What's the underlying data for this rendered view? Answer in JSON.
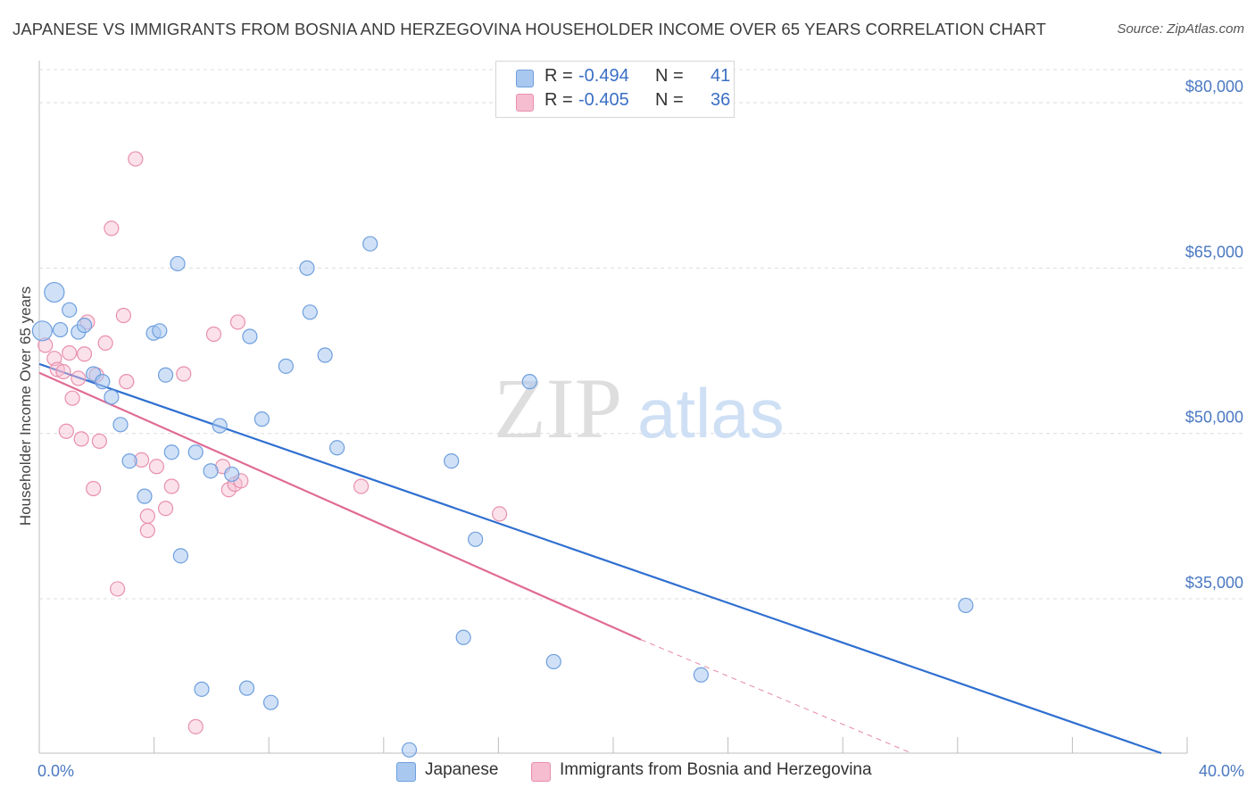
{
  "title": "JAPANESE VS IMMIGRANTS FROM BOSNIA AND HERZEGOVINA HOUSEHOLDER INCOME OVER 65 YEARS CORRELATION CHART",
  "source": "Source: ZipAtlas.com",
  "watermark": {
    "zip": "ZIP",
    "atlas": "atlas"
  },
  "legend": [
    {
      "r_label": "R = ",
      "r_value": "-0.494",
      "n_label": "N = ",
      "n_value": "41"
    },
    {
      "r_label": "R = ",
      "r_value": "-0.405",
      "n_label": "N = ",
      "n_value": "36"
    }
  ],
  "bottom_legend": [
    "Japanese",
    "Immigrants from Bosnia and Herzegovina"
  ],
  "colors": {
    "japanese_fill": "#a9c8f0",
    "japanese_stroke": "#6e9fde",
    "japanese_line": "#2f6fd0",
    "bosnia_fill": "#f6bcd0",
    "bosnia_stroke": "#e890ae",
    "bosnia_line": "#e06b95",
    "grid": "#dcdcdc",
    "tick_text": "#4a78c2"
  },
  "chart_data": {
    "type": "scatter",
    "title": "JAPANESE VS IMMIGRANTS FROM BOSNIA AND HERZEGOVINA HOUSEHOLDER INCOME OVER 65 YEARS CORRELATION CHART",
    "xlabel": "",
    "ylabel": "Householder Income Over 65 years",
    "xlim": [
      0,
      40
    ],
    "ylim": [
      21000,
      83000
    ],
    "x_tick_labels": [
      "0.0%",
      "40.0%"
    ],
    "y_ticks": [
      35000,
      50000,
      65000,
      80000
    ],
    "y_tick_labels": [
      "$35,000",
      "$50,000",
      "$65,000",
      "$80,000"
    ],
    "grid": true,
    "series": [
      {
        "name": "Japanese",
        "points": [
          [
            0.1,
            59300
          ],
          [
            0.5,
            62800
          ],
          [
            0.7,
            59400
          ],
          [
            1.0,
            61200
          ],
          [
            1.3,
            59200
          ],
          [
            1.5,
            59800
          ],
          [
            1.8,
            55400
          ],
          [
            2.1,
            54700
          ],
          [
            2.4,
            53300
          ],
          [
            2.7,
            50800
          ],
          [
            3.0,
            47500
          ],
          [
            3.5,
            44300
          ],
          [
            3.8,
            59100
          ],
          [
            4.0,
            59300
          ],
          [
            4.2,
            55300
          ],
          [
            4.4,
            48300
          ],
          [
            4.6,
            65400
          ],
          [
            4.7,
            38900
          ],
          [
            5.2,
            48300
          ],
          [
            5.4,
            26800
          ],
          [
            5.7,
            46600
          ],
          [
            6.0,
            50700
          ],
          [
            6.4,
            46300
          ],
          [
            6.9,
            26900
          ],
          [
            7.0,
            58800
          ],
          [
            7.4,
            51300
          ],
          [
            7.7,
            25600
          ],
          [
            8.2,
            56100
          ],
          [
            8.9,
            65000
          ],
          [
            9.0,
            61000
          ],
          [
            9.5,
            57100
          ],
          [
            9.9,
            48700
          ],
          [
            11.0,
            67200
          ],
          [
            12.3,
            21300
          ],
          [
            13.7,
            47500
          ],
          [
            14.1,
            31500
          ],
          [
            14.5,
            40400
          ],
          [
            16.3,
            54700
          ],
          [
            17.1,
            29300
          ],
          [
            22.0,
            28100
          ],
          [
            30.8,
            34400
          ]
        ]
      },
      {
        "name": "Immigrants from Bosnia and Herzegovina",
        "points": [
          [
            0.2,
            58000
          ],
          [
            0.5,
            56800
          ],
          [
            0.6,
            55800
          ],
          [
            0.8,
            55600
          ],
          [
            0.9,
            50200
          ],
          [
            1.0,
            57300
          ],
          [
            1.1,
            53200
          ],
          [
            1.3,
            55000
          ],
          [
            1.4,
            49500
          ],
          [
            1.5,
            57200
          ],
          [
            1.6,
            60100
          ],
          [
            1.8,
            45000
          ],
          [
            1.9,
            55300
          ],
          [
            2.0,
            49300
          ],
          [
            2.2,
            58200
          ],
          [
            2.6,
            35900
          ],
          [
            2.8,
            60700
          ],
          [
            2.9,
            54700
          ],
          [
            3.2,
            74900
          ],
          [
            3.4,
            47600
          ],
          [
            3.6,
            42500
          ],
          [
            3.6,
            41200
          ],
          [
            3.9,
            47000
          ],
          [
            4.2,
            43200
          ],
          [
            4.4,
            45200
          ],
          [
            4.8,
            55400
          ],
          [
            5.2,
            23400
          ],
          [
            5.8,
            59000
          ],
          [
            6.1,
            47000
          ],
          [
            6.3,
            44900
          ],
          [
            6.5,
            45400
          ],
          [
            6.7,
            45700
          ],
          [
            6.6,
            60100
          ],
          [
            10.7,
            45200
          ],
          [
            15.3,
            42700
          ],
          [
            2.4,
            68600
          ]
        ]
      }
    ],
    "trend_lines": [
      {
        "series": "Japanese",
        "x": [
          0,
          37.3
        ],
        "y": [
          56300,
          21000
        ]
      },
      {
        "series": "Immigrants from Bosnia and Herzegovina",
        "x": [
          0,
          20.0
        ],
        "y": [
          55500,
          31300
        ],
        "dashed_extension_to": [
          29.0,
          21000
        ]
      }
    ]
  }
}
